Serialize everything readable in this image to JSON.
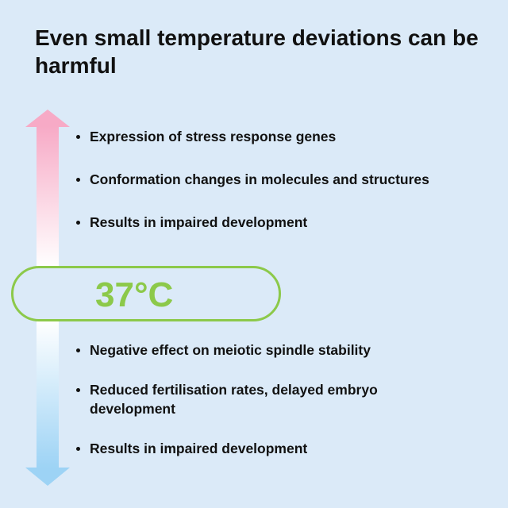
{
  "title": "Even small temperature deviations can be harmful",
  "temperature": "37°C",
  "above_effects": [
    "Expression of stress response genes",
    "Conformation changes in molecules and structures",
    "Results in impaired development"
  ],
  "below_effects": [
    "Negative effect on meiotic spindle stability",
    "Reduced fertilisation rates, delayed embryo development",
    "Results in impaired development"
  ],
  "colors": {
    "hot": "#f7aac6",
    "cold": "#9dd3f5",
    "neutral": "#ffffff",
    "accent": "#8cc94a",
    "background": "#dbeaf8"
  }
}
